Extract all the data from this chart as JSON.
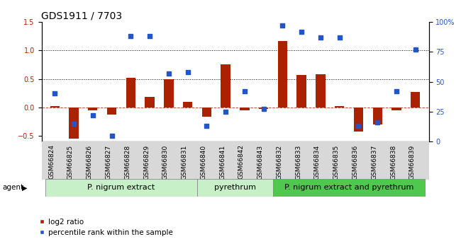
{
  "title": "GDS1911 / 7703",
  "samples": [
    "GSM66824",
    "GSM66825",
    "GSM66826",
    "GSM66827",
    "GSM66828",
    "GSM66829",
    "GSM66830",
    "GSM66831",
    "GSM66840",
    "GSM66841",
    "GSM66842",
    "GSM66843",
    "GSM66832",
    "GSM66833",
    "GSM66834",
    "GSM66835",
    "GSM66836",
    "GSM66837",
    "GSM66838",
    "GSM66839"
  ],
  "log2_ratio": [
    0.02,
    -0.55,
    -0.05,
    -0.13,
    0.52,
    0.18,
    0.5,
    0.1,
    -0.17,
    0.75,
    -0.05,
    -0.03,
    1.17,
    0.57,
    0.58,
    0.02,
    -0.42,
    -0.3,
    -0.05,
    0.27
  ],
  "pct_rank": [
    40,
    15,
    22,
    5,
    88,
    88,
    57,
    58,
    13,
    25,
    42,
    27,
    97,
    92,
    87,
    87,
    13,
    16,
    42,
    77
  ],
  "groups": [
    {
      "label": "P. nigrum extract",
      "start": 0,
      "end": 8,
      "color": "#c8f0c8"
    },
    {
      "label": "pyrethrum",
      "start": 8,
      "end": 12,
      "color": "#c8f0c8"
    },
    {
      "label": "P. nigrum extract and pyrethrum",
      "start": 12,
      "end": 20,
      "color": "#50c850"
    }
  ],
  "bar_color": "#aa2200",
  "dot_color": "#2255cc",
  "ylim_left": [
    -0.6,
    1.5
  ],
  "ylim_right": [
    0,
    100
  ],
  "yticks_left": [
    -0.5,
    0.0,
    0.5,
    1.0,
    1.5
  ],
  "yticks_right": [
    0,
    25,
    50,
    75,
    100
  ],
  "agent_label": "agent",
  "legend_bar_label": "log2 ratio",
  "legend_dot_label": "percentile rank within the sample",
  "bar_width": 0.5,
  "dot_size": 22,
  "title_fontsize": 10,
  "tick_fontsize": 7,
  "label_fontsize": 7.5,
  "group_label_fontsize": 8
}
